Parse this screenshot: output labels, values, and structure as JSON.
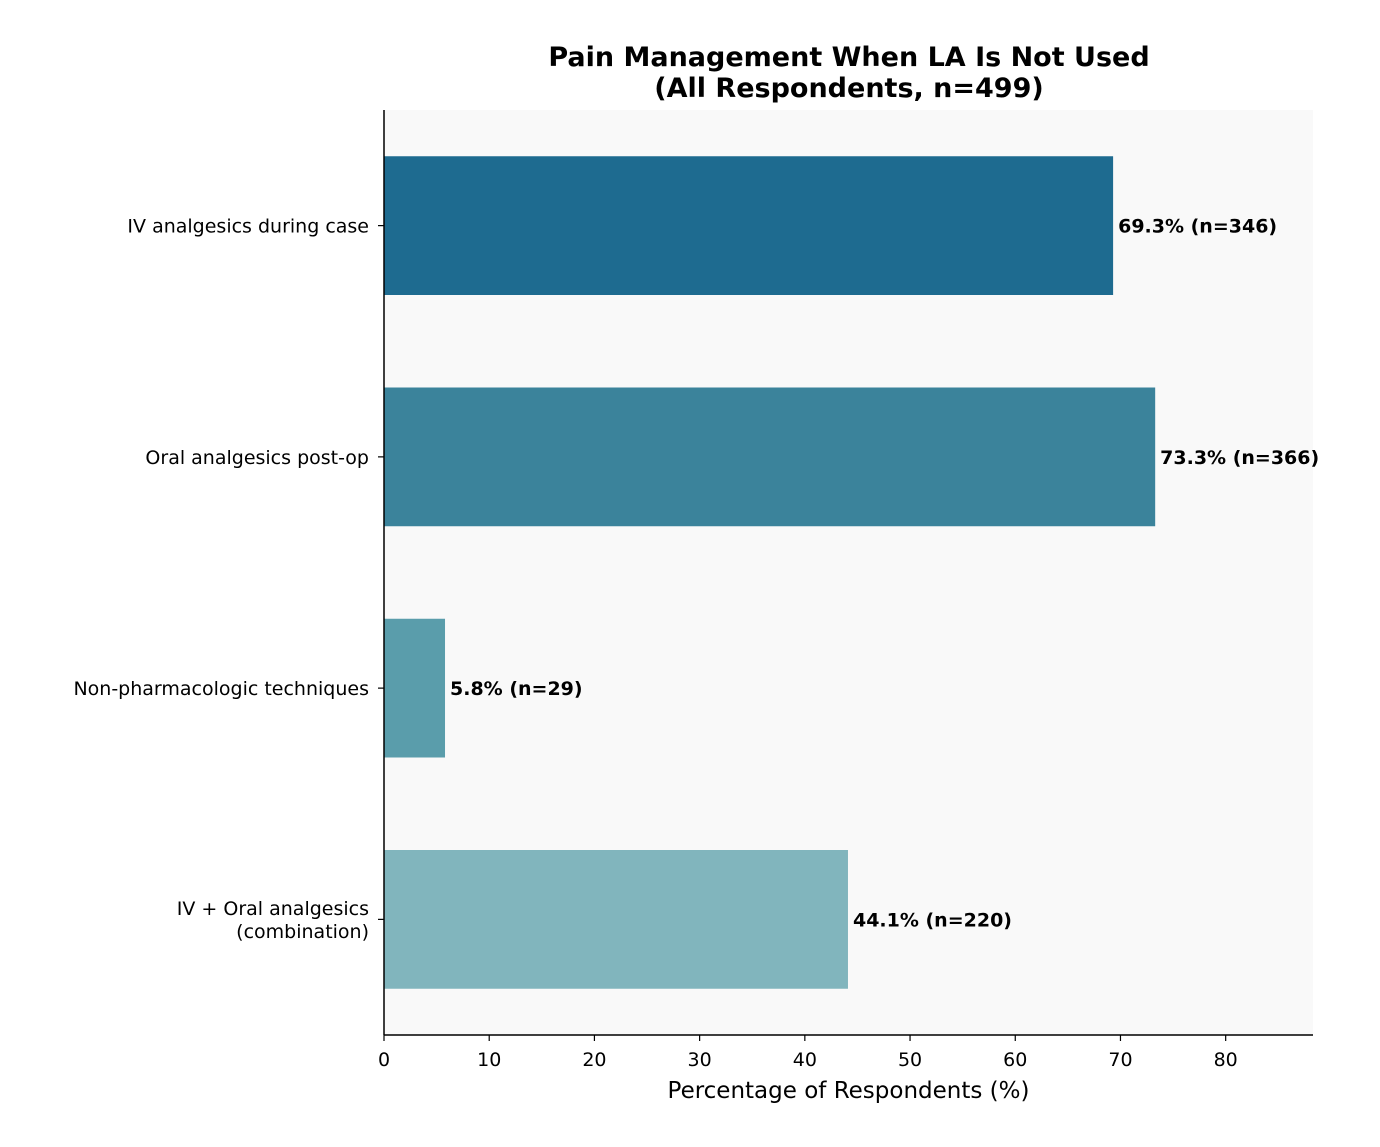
{
  "chart_data": {
    "type": "bar",
    "orientation": "horizontal",
    "title": "Pain Management When LA Is Not Used\n(All Respondents, n=499)",
    "title_lines": [
      "Pain Management When LA Is Not Used",
      "(All Respondents, n=499)"
    ],
    "xlabel": "Percentage of Respondents (%)",
    "ylabel": "",
    "categories": [
      [
        "IV analgesics during case"
      ],
      [
        "Oral analgesics post-op"
      ],
      [
        "Non-pharmacologic techniques"
      ],
      [
        "IV + Oral analgesics",
        "(combination)"
      ]
    ],
    "values": [
      69.3,
      73.3,
      5.8,
      44.1
    ],
    "data_labels": [
      "69.3% (n=346)",
      "73.3% (n=366)",
      "5.8% (n=29)",
      "44.1% (n=220)"
    ],
    "colors": [
      "#1e6b90",
      "#3b839b",
      "#5a9dab",
      "#81b5bd"
    ],
    "xlim": [
      0,
      88.3
    ],
    "xticks": [
      0,
      10,
      20,
      30,
      40,
      50,
      60,
      70,
      80
    ],
    "grid": false,
    "background": "#f9f9f9"
  }
}
